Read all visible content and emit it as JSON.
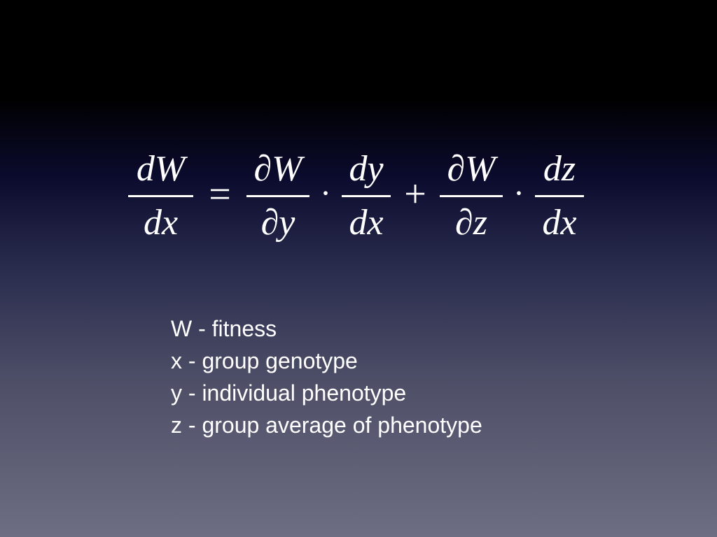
{
  "equation": {
    "lhs": {
      "numerator": "dW",
      "denominator": "dx"
    },
    "equals": "=",
    "term1": {
      "factor1": {
        "numerator": "∂W",
        "denominator": "∂y"
      },
      "dot": "·",
      "factor2": {
        "numerator": "dy",
        "denominator": "dx"
      }
    },
    "plus": "+",
    "term2": {
      "factor1": {
        "numerator": "∂W",
        "denominator": "∂z"
      },
      "dot": "·",
      "factor2": {
        "numerator": "dz",
        "denominator": "dx"
      }
    }
  },
  "legend": [
    "W - fitness",
    "x - group genotype",
    "y - individual phenotype",
    "z - group average of phenotype"
  ],
  "colors": {
    "text": "#ffffff",
    "background_top": "#000000",
    "background_bottom": "#6d6e83"
  }
}
